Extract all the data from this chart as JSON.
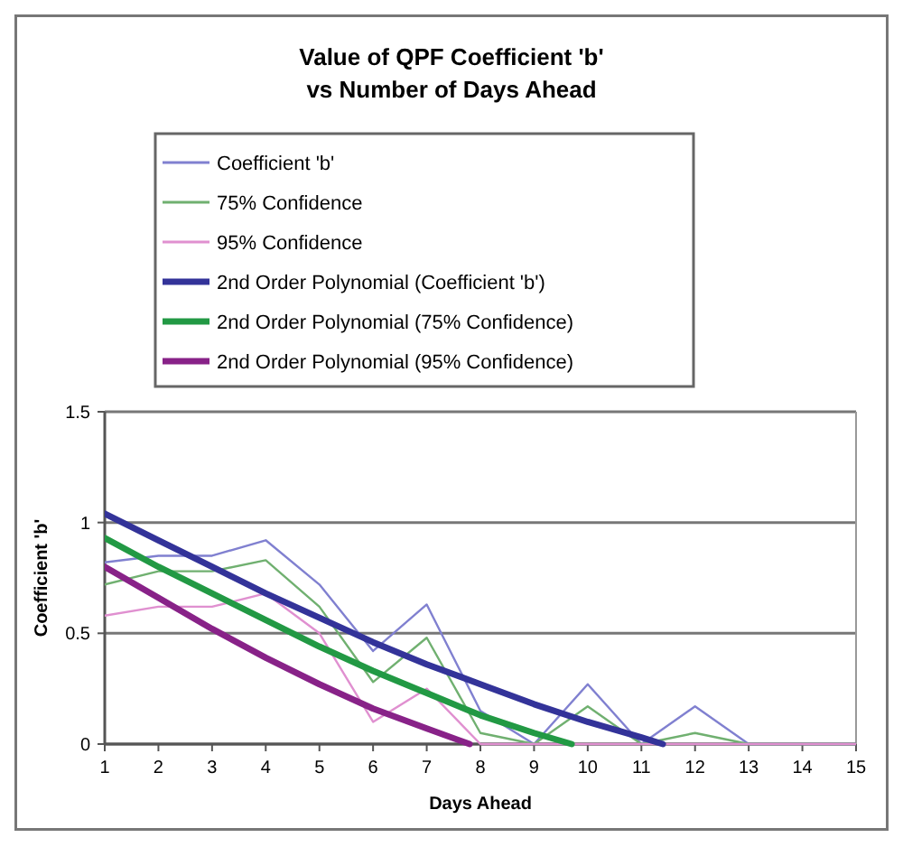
{
  "chart_data": {
    "type": "line",
    "title": "Value of QPF Coefficient 'b'",
    "subtitle": "vs Number of Days Ahead",
    "xlabel": "Days Ahead",
    "ylabel": "Coefficient 'b'",
    "x": [
      1,
      2,
      3,
      4,
      5,
      6,
      7,
      8,
      9,
      10,
      11,
      12,
      13,
      14,
      15
    ],
    "xlim": [
      1,
      15
    ],
    "xticks": [
      1,
      2,
      3,
      4,
      5,
      6,
      7,
      8,
      9,
      10,
      11,
      12,
      13,
      14,
      15
    ],
    "ylim": [
      0,
      1.5
    ],
    "yticks": [
      0,
      0.5,
      1,
      1.5
    ],
    "grid": "y",
    "legend": "top",
    "marker": "none",
    "line_style": "solid",
    "series": [
      {
        "name": "Coefficient 'b'",
        "color": "#8080d0",
        "values": [
          0.82,
          0.85,
          0.85,
          0.92,
          0.72,
          0.42,
          0.63,
          0.15,
          0,
          0.27,
          0,
          0.17,
          0,
          0,
          0
        ]
      },
      {
        "name": "75% Confidence",
        "color": "#70b070",
        "values": [
          0.72,
          0.78,
          0.78,
          0.83,
          0.62,
          0.28,
          0.48,
          0.05,
          0,
          0.17,
          0,
          0.05,
          0,
          0,
          0
        ]
      },
      {
        "name": "95% Confidence",
        "color": "#e090d0",
        "values": [
          0.58,
          0.62,
          0.62,
          0.68,
          0.5,
          0.1,
          0.25,
          0,
          0,
          0,
          0,
          0,
          0,
          0,
          0
        ]
      },
      {
        "name": "2nd Order Polynomial (Coefficient 'b')",
        "color": "#333399",
        "x": [
          1,
          2,
          3,
          4,
          5,
          6,
          7,
          8,
          9,
          10,
          11,
          11.4
        ],
        "values": [
          1.04,
          0.92,
          0.8,
          0.68,
          0.57,
          0.46,
          0.36,
          0.27,
          0.18,
          0.1,
          0.03,
          0
        ]
      },
      {
        "name": "2nd Order Polynomial (75% Confidence)",
        "color": "#229944",
        "x": [
          1,
          2,
          3,
          4,
          5,
          6,
          7,
          8,
          9,
          9.7
        ],
        "values": [
          0.93,
          0.8,
          0.68,
          0.56,
          0.44,
          0.33,
          0.23,
          0.13,
          0.05,
          0
        ]
      },
      {
        "name": "2nd Order Polynomial (95% Confidence)",
        "color": "#882288",
        "x": [
          1,
          2,
          3,
          4,
          5,
          6,
          7,
          7.8
        ],
        "values": [
          0.8,
          0.66,
          0.52,
          0.39,
          0.27,
          0.16,
          0.07,
          0
        ]
      }
    ]
  }
}
